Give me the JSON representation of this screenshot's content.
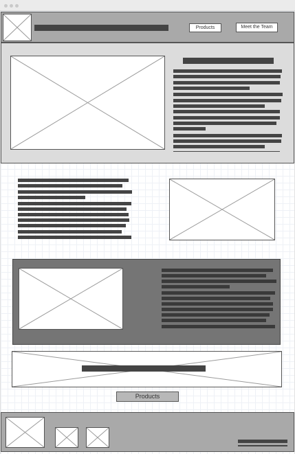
{
  "header": {
    "nav": [
      {
        "label": "Products"
      },
      {
        "label": "Meet the Team"
      }
    ]
  },
  "cta": {
    "label": "Products"
  },
  "colors": {
    "header_bg": "#a9a9a9",
    "hero_bg": "#dcdcdc",
    "dark_section_bg": "#757575",
    "footer_bg": "#a9a9a9",
    "text_bar": "#444444",
    "grid_line": "#eef1f6"
  },
  "icons": [
    "placeholder-image-icon"
  ]
}
